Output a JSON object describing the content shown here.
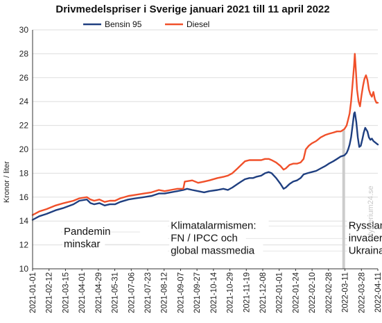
{
  "chart_data": {
    "type": "line",
    "title": "Drivmedelspriser i Sverige januari 2021 till 11 april 2022",
    "ylabel": "Kronor / liter",
    "ylim": [
      10,
      30
    ],
    "yticks": [
      10,
      12,
      14,
      16,
      18,
      20,
      22,
      24,
      26,
      28,
      30
    ],
    "grid": "horizontal",
    "legend_position": "top-center",
    "xlim": [
      "2021-01-01",
      "2022-04-11"
    ],
    "xticks": [
      "2021-01-01",
      "2021-02-12",
      "2021-03-15",
      "2021-04-01",
      "2021-04-29",
      "2021-05-31",
      "2021-07-06",
      "2021-07-23",
      "2021-08-12",
      "2021-09-07",
      "2021-09-27",
      "2021-10-14",
      "2021-10-29",
      "2021-11-19",
      "2021-12-08",
      "2022-01-01",
      "2022-01-24",
      "2022-02-10",
      "2022-02-28",
      "2022-03-11",
      "2022-03-28",
      "2022-04-11"
    ],
    "series": [
      {
        "name": "Bensin 95",
        "color": "#1f3f80",
        "points": [
          [
            "2021-01-01",
            14.1
          ],
          [
            "2021-01-10",
            14.4
          ],
          [
            "2021-01-20",
            14.6
          ],
          [
            "2021-02-01",
            14.9
          ],
          [
            "2021-02-12",
            15.1
          ],
          [
            "2021-02-25",
            15.4
          ],
          [
            "2021-03-05",
            15.7
          ],
          [
            "2021-03-15",
            15.8
          ],
          [
            "2021-03-20",
            15.5
          ],
          [
            "2021-03-25",
            15.4
          ],
          [
            "2021-04-01",
            15.5
          ],
          [
            "2021-04-08",
            15.3
          ],
          [
            "2021-04-15",
            15.4
          ],
          [
            "2021-04-22",
            15.4
          ],
          [
            "2021-04-29",
            15.6
          ],
          [
            "2021-05-10",
            15.8
          ],
          [
            "2021-05-20",
            15.9
          ],
          [
            "2021-05-31",
            16.0
          ],
          [
            "2021-06-10",
            16.1
          ],
          [
            "2021-06-20",
            16.3
          ],
          [
            "2021-06-28",
            16.3
          ],
          [
            "2021-07-06",
            16.4
          ],
          [
            "2021-07-15",
            16.5
          ],
          [
            "2021-07-23",
            16.6
          ],
          [
            "2021-07-28",
            16.7
          ],
          [
            "2021-08-04",
            16.6
          ],
          [
            "2021-08-12",
            16.5
          ],
          [
            "2021-08-20",
            16.4
          ],
          [
            "2021-08-27",
            16.5
          ],
          [
            "2021-09-07",
            16.6
          ],
          [
            "2021-09-15",
            16.7
          ],
          [
            "2021-09-21",
            16.6
          ],
          [
            "2021-09-27",
            16.8
          ],
          [
            "2021-10-04",
            17.1
          ],
          [
            "2021-10-09",
            17.3
          ],
          [
            "2021-10-14",
            17.5
          ],
          [
            "2021-10-20",
            17.6
          ],
          [
            "2021-10-25",
            17.6
          ],
          [
            "2021-10-29",
            17.7
          ],
          [
            "2021-11-05",
            17.8
          ],
          [
            "2021-11-10",
            18.0
          ],
          [
            "2021-11-15",
            18.1
          ],
          [
            "2021-11-19",
            18.0
          ],
          [
            "2021-11-25",
            17.6
          ],
          [
            "2021-12-01",
            17.1
          ],
          [
            "2021-12-05",
            16.7
          ],
          [
            "2021-12-08",
            16.8
          ],
          [
            "2021-12-13",
            17.1
          ],
          [
            "2021-12-18",
            17.3
          ],
          [
            "2021-12-23",
            17.4
          ],
          [
            "2021-12-28",
            17.6
          ],
          [
            "2022-01-01",
            17.9
          ],
          [
            "2022-01-06",
            18.0
          ],
          [
            "2022-01-12",
            18.1
          ],
          [
            "2022-01-18",
            18.2
          ],
          [
            "2022-01-24",
            18.4
          ],
          [
            "2022-01-30",
            18.6
          ],
          [
            "2022-02-04",
            18.8
          ],
          [
            "2022-02-10",
            19.0
          ],
          [
            "2022-02-15",
            19.2
          ],
          [
            "2022-02-20",
            19.4
          ],
          [
            "2022-02-25",
            19.5
          ],
          [
            "2022-02-28",
            19.7
          ],
          [
            "2022-03-02",
            20.0
          ],
          [
            "2022-03-04",
            20.4
          ],
          [
            "2022-03-06",
            21.0
          ],
          [
            "2022-03-08",
            22.0
          ],
          [
            "2022-03-10",
            23.0
          ],
          [
            "2022-03-11",
            23.1
          ],
          [
            "2022-03-13",
            22.3
          ],
          [
            "2022-03-15",
            21.0
          ],
          [
            "2022-03-17",
            20.2
          ],
          [
            "2022-03-19",
            20.3
          ],
          [
            "2022-03-21",
            20.8
          ],
          [
            "2022-03-23",
            21.4
          ],
          [
            "2022-03-25",
            21.8
          ],
          [
            "2022-03-28",
            21.5
          ],
          [
            "2022-03-30",
            21.0
          ],
          [
            "2022-04-01",
            20.8
          ],
          [
            "2022-04-03",
            20.9
          ],
          [
            "2022-04-05",
            20.7
          ],
          [
            "2022-04-07",
            20.6
          ],
          [
            "2022-04-09",
            20.5
          ],
          [
            "2022-04-11",
            20.4
          ]
        ]
      },
      {
        "name": "Diesel",
        "color": "#f0502a",
        "points": [
          [
            "2021-01-01",
            14.5
          ],
          [
            "2021-01-10",
            14.8
          ],
          [
            "2021-01-20",
            15.0
          ],
          [
            "2021-02-01",
            15.3
          ],
          [
            "2021-02-12",
            15.5
          ],
          [
            "2021-02-25",
            15.7
          ],
          [
            "2021-03-05",
            15.9
          ],
          [
            "2021-03-15",
            16.0
          ],
          [
            "2021-03-20",
            15.8
          ],
          [
            "2021-03-25",
            15.7
          ],
          [
            "2021-04-01",
            15.8
          ],
          [
            "2021-04-08",
            15.6
          ],
          [
            "2021-04-15",
            15.7
          ],
          [
            "2021-04-22",
            15.7
          ],
          [
            "2021-04-29",
            15.9
          ],
          [
            "2021-05-10",
            16.1
          ],
          [
            "2021-05-20",
            16.2
          ],
          [
            "2021-05-31",
            16.3
          ],
          [
            "2021-06-10",
            16.4
          ],
          [
            "2021-06-20",
            16.6
          ],
          [
            "2021-06-28",
            16.5
          ],
          [
            "2021-07-06",
            16.6
          ],
          [
            "2021-07-15",
            16.7
          ],
          [
            "2021-07-23",
            16.7
          ],
          [
            "2021-07-25",
            17.3
          ],
          [
            "2021-08-04",
            17.4
          ],
          [
            "2021-08-12",
            17.2
          ],
          [
            "2021-08-20",
            17.3
          ],
          [
            "2021-08-27",
            17.4
          ],
          [
            "2021-09-07",
            17.6
          ],
          [
            "2021-09-15",
            17.7
          ],
          [
            "2021-09-21",
            17.8
          ],
          [
            "2021-09-27",
            18.0
          ],
          [
            "2021-10-04",
            18.4
          ],
          [
            "2021-10-09",
            18.7
          ],
          [
            "2021-10-14",
            19.0
          ],
          [
            "2021-10-20",
            19.1
          ],
          [
            "2021-10-25",
            19.1
          ],
          [
            "2021-10-29",
            19.1
          ],
          [
            "2021-11-05",
            19.1
          ],
          [
            "2021-11-10",
            19.2
          ],
          [
            "2021-11-15",
            19.2
          ],
          [
            "2021-11-19",
            19.1
          ],
          [
            "2021-11-25",
            18.9
          ],
          [
            "2021-12-01",
            18.6
          ],
          [
            "2021-12-05",
            18.3
          ],
          [
            "2021-12-08",
            18.4
          ],
          [
            "2021-12-13",
            18.7
          ],
          [
            "2021-12-18",
            18.8
          ],
          [
            "2021-12-23",
            18.8
          ],
          [
            "2021-12-28",
            18.9
          ],
          [
            "2022-01-01",
            19.2
          ],
          [
            "2022-01-04",
            20.0
          ],
          [
            "2022-01-08",
            20.3
          ],
          [
            "2022-01-12",
            20.5
          ],
          [
            "2022-01-18",
            20.7
          ],
          [
            "2022-01-24",
            21.0
          ],
          [
            "2022-01-30",
            21.2
          ],
          [
            "2022-02-04",
            21.3
          ],
          [
            "2022-02-10",
            21.4
          ],
          [
            "2022-02-15",
            21.5
          ],
          [
            "2022-02-20",
            21.5
          ],
          [
            "2022-02-25",
            21.7
          ],
          [
            "2022-02-28",
            22.0
          ],
          [
            "2022-03-02",
            22.5
          ],
          [
            "2022-03-04",
            23.0
          ],
          [
            "2022-03-06",
            24.0
          ],
          [
            "2022-03-08",
            25.5
          ],
          [
            "2022-03-10",
            27.0
          ],
          [
            "2022-03-11",
            28.0
          ],
          [
            "2022-03-12",
            27.0
          ],
          [
            "2022-03-14",
            25.0
          ],
          [
            "2022-03-16",
            24.0
          ],
          [
            "2022-03-18",
            23.6
          ],
          [
            "2022-03-20",
            24.5
          ],
          [
            "2022-03-22",
            25.3
          ],
          [
            "2022-03-24",
            25.9
          ],
          [
            "2022-03-26",
            26.2
          ],
          [
            "2022-03-28",
            25.8
          ],
          [
            "2022-03-30",
            25.0
          ],
          [
            "2022-04-01",
            24.6
          ],
          [
            "2022-04-03",
            24.4
          ],
          [
            "2022-04-05",
            24.8
          ],
          [
            "2022-04-07",
            24.2
          ],
          [
            "2022-04-09",
            23.9
          ],
          [
            "2022-04-11",
            23.9
          ]
        ]
      }
    ],
    "annotations": [
      {
        "date": "2021-02-12",
        "y": 12.85,
        "lines": [
          "Pandemin",
          "minskar"
        ]
      },
      {
        "date": "2021-07-06",
        "y": 13.35,
        "lines": [
          "Klimatalarmismen:",
          "FN / IPCC och",
          "global massmedia"
        ]
      },
      {
        "date": "2022-02-24",
        "y": 13.35,
        "lines": [
          "Ryssland",
          "invaderar",
          "Ukraina"
        ]
      }
    ],
    "marker_line_date": "2022-02-24",
    "watermark": "Mysterium24.se"
  }
}
